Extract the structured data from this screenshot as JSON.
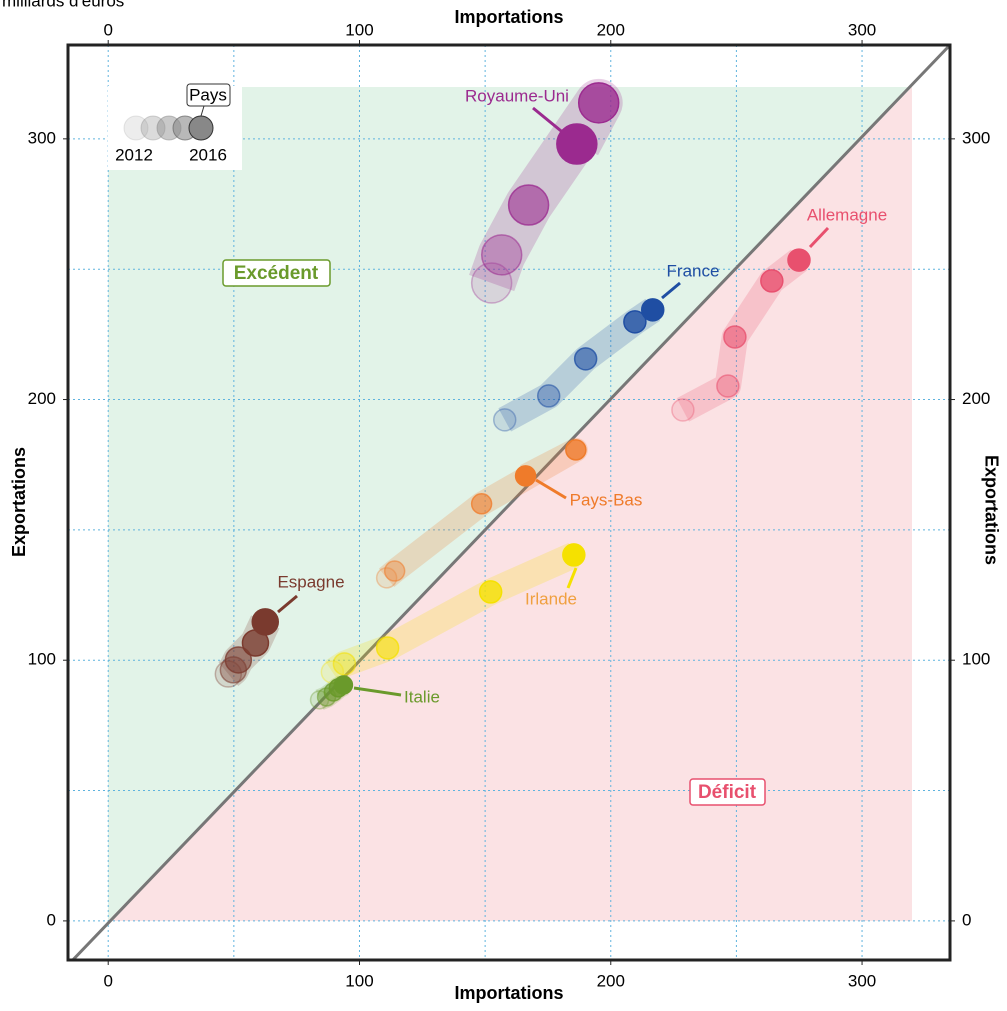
{
  "chart_data": {
    "type": "bubble-path",
    "unit": "milliards d'euros",
    "x_label": "Importations",
    "y_label": "Exportations",
    "xlim": [
      -16,
      335
    ],
    "ylim": [
      -15,
      336
    ],
    "xticks": [
      0,
      100,
      200,
      300
    ],
    "yticks": [
      0,
      100,
      200,
      300
    ],
    "xminor": [
      50,
      150,
      250
    ],
    "yminor": [
      50,
      150,
      250
    ],
    "grid": true,
    "regions": {
      "above": "Excédent",
      "below": "Déficit"
    },
    "legend": {
      "title": "Pays",
      "start": "2012",
      "end": "2016"
    },
    "series": [
      {
        "name": "Royaume-Uni",
        "color": "#9b2a8f",
        "x": [
          152.6,
          156.6,
          167.3,
          195.2,
          186.5
        ],
        "y": [
          244.7,
          255.5,
          274.6,
          313.8,
          298.0
        ]
      },
      {
        "name": "France",
        "color": "#1f4ea3",
        "x": [
          157.8,
          175.3,
          190.0,
          209.6,
          216.7
        ],
        "y": [
          192.2,
          201.4,
          215.6,
          229.8,
          234.4
        ]
      },
      {
        "name": "Allemagne",
        "color": "#e8506e",
        "x": [
          228.7,
          246.6,
          249.4,
          264.1,
          274.9
        ],
        "y": [
          196.0,
          205.2,
          224.0,
          245.5,
          253.5
        ]
      },
      {
        "name": "Pays-Bas",
        "color": "#ef7b2a",
        "x": [
          110.8,
          114.0,
          148.6,
          186.1,
          166.1
        ],
        "y": [
          131.6,
          134.2,
          160.0,
          180.7,
          170.7
        ]
      },
      {
        "name": "Irlande",
        "color": "#f5e100",
        "x": [
          89.2,
          94.0,
          111.2,
          152.2,
          185.3
        ],
        "y": [
          95.5,
          98.6,
          104.7,
          126.2,
          140.4
        ]
      },
      {
        "name": "Italie",
        "color": "#6a9a2b",
        "x": [
          84.1,
          86.9,
          89.6,
          91.6,
          93.6
        ],
        "y": [
          84.8,
          85.9,
          87.8,
          89.4,
          90.5
        ]
      },
      {
        "name": "Espagne",
        "color": "#7a3a2e",
        "x": [
          47.8,
          49.8,
          51.8,
          58.6,
          62.5
        ],
        "y": [
          94.7,
          96.3,
          100.1,
          106.6,
          114.7
        ]
      }
    ]
  }
}
